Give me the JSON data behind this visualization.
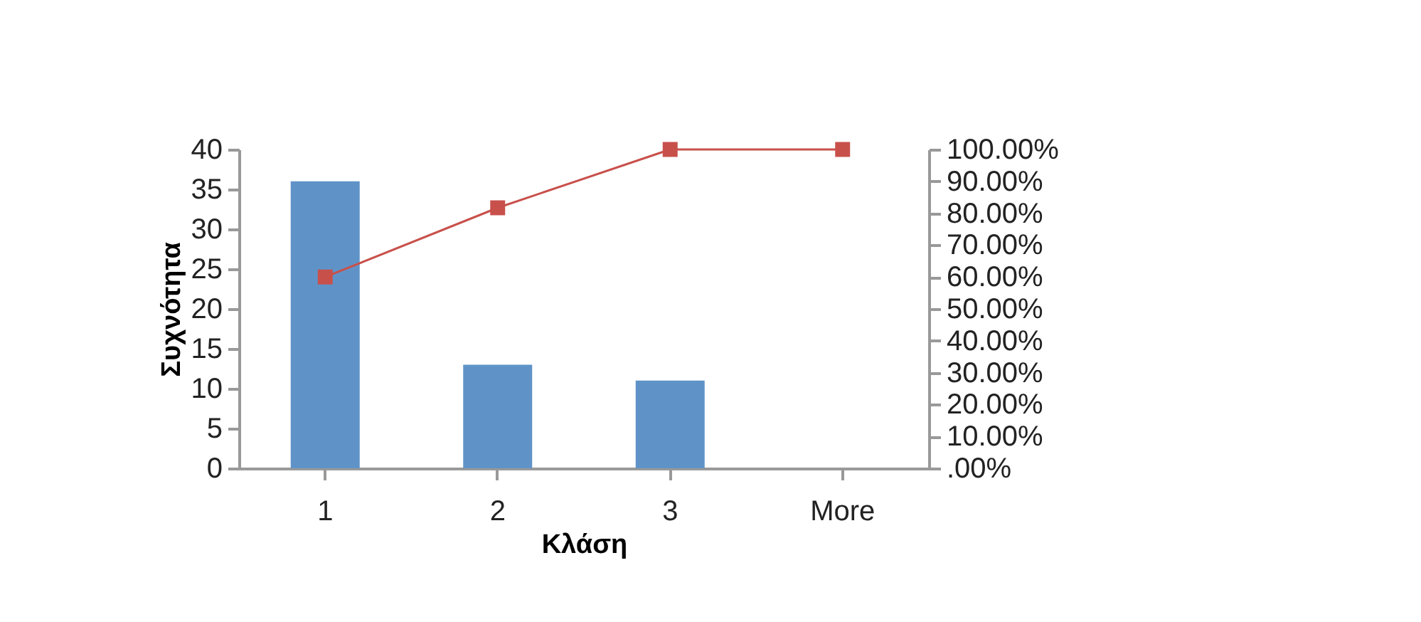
{
  "chart_data": {
    "type": "bar",
    "xlabel": "Κλάση",
    "ylabel": "Συχνότητα",
    "categories": [
      "1",
      "2",
      "3",
      "More"
    ],
    "series": [
      {
        "color": "#5f93c8",
        "values": [
          36,
          13,
          11,
          0
        ]
      },
      {
        "type": "line",
        "axis": "y2",
        "color": "#c8504b",
        "values": [
          60,
          81.7,
          100,
          100
        ]
      }
    ],
    "ylim": [
      0,
      40
    ],
    "yticks": [
      0,
      5,
      10,
      15,
      20,
      25,
      30,
      35,
      40
    ],
    "y2lim": [
      0,
      100
    ],
    "y2ticks": [
      {
        "value": 0,
        "label": ".00%"
      },
      {
        "value": 10,
        "label": "10.00%"
      },
      {
        "value": 20,
        "label": "20.00%"
      },
      {
        "value": 30,
        "label": "30.00%"
      },
      {
        "value": 40,
        "label": "40.00%"
      },
      {
        "value": 50,
        "label": "50.00%"
      },
      {
        "value": 60,
        "label": "60.00%"
      },
      {
        "value": 70,
        "label": "70.00%"
      },
      {
        "value": 80,
        "label": "80.00%"
      },
      {
        "value": 90,
        "label": "90.00%"
      },
      {
        "value": 100,
        "label": "100.00%"
      }
    ],
    "marker": "square",
    "grid": false,
    "legend": false
  }
}
